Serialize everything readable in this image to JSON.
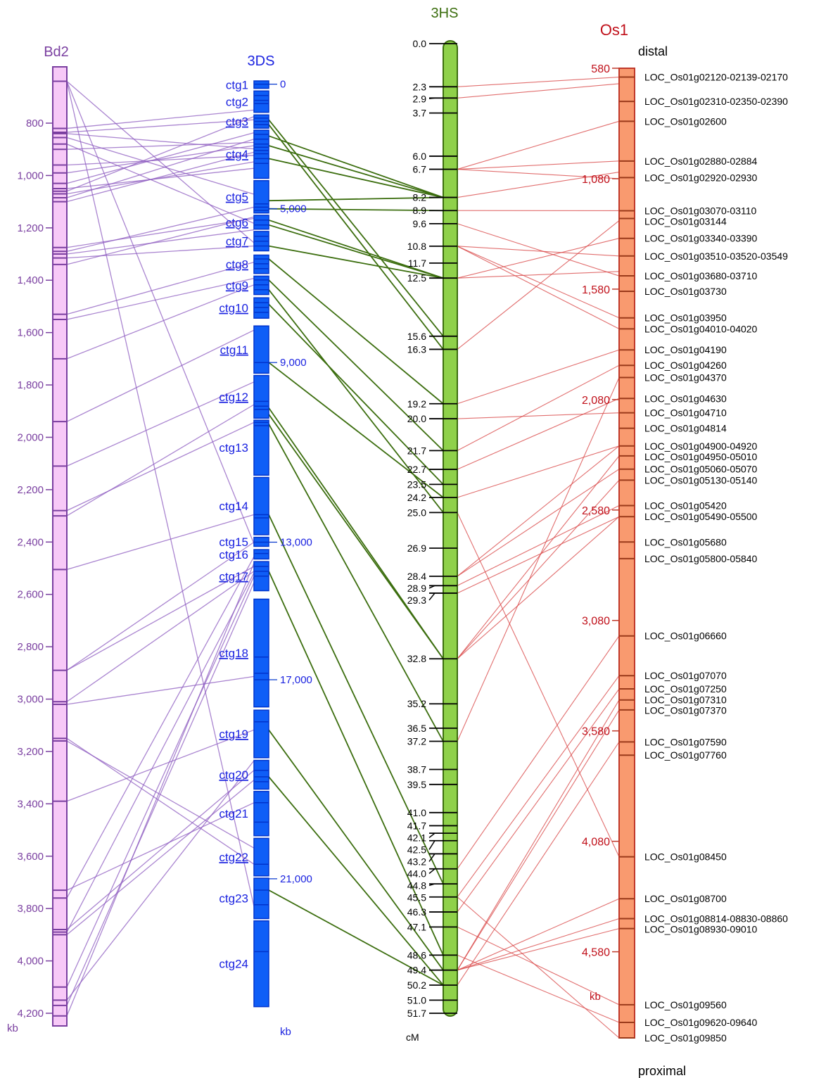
{
  "colors": {
    "bd2_fill": "#f7c9f7",
    "bd2_edge": "#7a3fa0",
    "bd2_text": "#7a3fa0",
    "bd2_link": "#8e5cc0",
    "ds_fill": "#0f5ef7",
    "ds_edge": "#0033cc",
    "ds_text": "#1a22e0",
    "ds_link": "#3c6e0f",
    "hs_fill": "#8fd14a",
    "hs_edge": "#3c6e0f",
    "hs_text": "#3c6e0f",
    "os_fill": "#f99a6f",
    "os_edge": "#c0392b",
    "os_text": "#c0101a",
    "os_link": "#d94a4a"
  },
  "bd2": {
    "title": "Bd2",
    "unit": "kb",
    "range": [
      635,
      4230
    ],
    "ticks": [
      "800",
      "1,000",
      "1,200",
      "1,400",
      "1,600",
      "1,800",
      "2,000",
      "2,200",
      "2,400",
      "2,600",
      "2,800",
      "3,000",
      "3,200",
      "3,400",
      "3,600",
      "3,800",
      "4,000",
      "4,200"
    ],
    "marks": [
      640,
      820,
      835,
      840,
      855,
      880,
      900,
      960,
      990,
      1030,
      1050,
      1060,
      1070,
      1085,
      1100,
      1275,
      1290,
      1300,
      1315,
      1340,
      1530,
      1550,
      1700,
      1940,
      2110,
      2280,
      2300,
      2505,
      2890,
      3010,
      3020,
      3150,
      3160,
      3390,
      3730,
      3760,
      3880,
      3890,
      3900,
      4100,
      4150,
      4170,
      4210
    ]
  },
  "ds3": {
    "title": "3DS",
    "unit": "kb",
    "contigs": [
      {
        "label": "ctg1",
        "underline": false,
        "from": 0,
        "to": 230,
        "marks": [
          100
        ]
      },
      {
        "label": "ctg2",
        "underline": false,
        "from": 310,
        "to": 970,
        "marks": [
          450,
          600,
          700
        ]
      },
      {
        "label": "ctg3",
        "underline": true,
        "from": 1050,
        "to": 1460,
        "marks": [
          1150,
          1250,
          1350
        ]
      },
      {
        "label": "ctg4",
        "underline": true,
        "from": 1520,
        "to": 3010,
        "marks": [
          1650,
          1800,
          1950,
          2050,
          2150,
          2250,
          2400,
          2550
        ]
      },
      {
        "label": "ctg5",
        "underline": true,
        "from": 3080,
        "to": 4080,
        "marks": [
          3800,
          3900,
          4000
        ]
      },
      {
        "label": "ctg6",
        "underline": true,
        "from": 4150,
        "to": 4580,
        "marks": [
          4300,
          4450
        ]
      },
      {
        "label": "ctg7",
        "underline": true,
        "from": 4650,
        "to": 5250,
        "marks": [
          4800,
          4950,
          5100
        ]
      },
      {
        "label": "ctg8",
        "underline": true,
        "from": 5380,
        "to": 5950,
        "marks": [
          5500,
          5650,
          5800
        ]
      },
      {
        "label": "ctg9",
        "underline": true,
        "from": 6030,
        "to": 6600,
        "marks": [
          6150,
          6300,
          6450
        ]
      },
      {
        "label": "ctg10",
        "underline": true,
        "from": 6700,
        "to": 7330,
        "marks": [
          6850,
          7000,
          7150
        ]
      },
      {
        "label": "ctg11",
        "underline": true,
        "from": 7570,
        "to": 9030,
        "marks": [
          8700
        ]
      },
      {
        "label": "ctg12",
        "underline": true,
        "from": 9100,
        "to": 10420,
        "marks": [
          9900,
          10050,
          10150
        ]
      },
      {
        "label": "ctg13",
        "underline": false,
        "from": 10480,
        "to": 12180,
        "marks": [
          10550,
          10650
        ]
      },
      {
        "label": "ctg14",
        "underline": false,
        "from": 12250,
        "to": 14020,
        "marks": [
          13400,
          13500
        ]
      },
      {
        "label": "ctg15",
        "underline": false,
        "from": 14100,
        "to": 14380,
        "marks": [
          14250
        ]
      },
      {
        "label": "ctg16",
        "underline": false,
        "from": 14480,
        "to": 14770,
        "marks": [
          14600
        ]
      },
      {
        "label": "ctg17",
        "underline": true,
        "from": 14850,
        "to": 15750,
        "marks": [
          15000,
          15150,
          15300
        ]
      },
      {
        "label": "ctg18",
        "underline": true,
        "from": 16010,
        "to": 19340,
        "marks": [
          17800,
          18300,
          18500
        ]
      },
      {
        "label": "ctg19",
        "underline": true,
        "from": 19440,
        "to": 20910,
        "marks": [
          19800
        ]
      },
      {
        "label": "ctg20",
        "underline": true,
        "from": 20990,
        "to": 21880,
        "marks": [
          21300,
          21500,
          21650
        ]
      },
      {
        "label": "ctg21",
        "underline": false,
        "from": 21950,
        "to": 23320,
        "marks": [
          22300,
          22900
        ]
      },
      {
        "label": "ctg22",
        "underline": true,
        "from": 23400,
        "to": 24560,
        "marks": [
          24200
        ]
      },
      {
        "label": "ctg23",
        "underline": false,
        "from": 24630,
        "to": 25880,
        "marks": [
          25000,
          25450
        ]
      },
      {
        "label": "ctg24",
        "underline": false,
        "from": 25950,
        "to": 28600,
        "marks": [
          26900
        ]
      }
    ],
    "kb_ticks": [
      {
        "label": "0",
        "value": 100
      },
      {
        "label": "5,000",
        "value": 3950
      },
      {
        "label": "9,000",
        "value": 8700
      },
      {
        "label": "13,000",
        "value": 14250
      },
      {
        "label": "17,000",
        "value": 18500
      },
      {
        "label": "21,000",
        "value": 24650
      }
    ]
  },
  "hs3": {
    "title": "3HS",
    "unit": "cM",
    "range": [
      0,
      51.7
    ],
    "loci": [
      {
        "label": "0.0",
        "cM": 0.0
      },
      {
        "label": "2.3",
        "cM": 2.3
      },
      {
        "label": "2.9",
        "cM": 2.9
      },
      {
        "label": "3.7",
        "cM": 3.7
      },
      {
        "label": "6.0",
        "cM": 6.0
      },
      {
        "label": "6.7",
        "cM": 6.7
      },
      {
        "label": "8.2",
        "cM": 8.2
      },
      {
        "label": "8.9",
        "cM": 8.9
      },
      {
        "label": "9.6",
        "cM": 9.6
      },
      {
        "label": "10.8",
        "cM": 10.8
      },
      {
        "label": "11.7",
        "cM": 11.7
      },
      {
        "label": "12.5",
        "cM": 12.5
      },
      {
        "label": "15.6",
        "cM": 15.6
      },
      {
        "label": "16.3",
        "cM": 16.3
      },
      {
        "label": "19.2",
        "cM": 19.2
      },
      {
        "label": "20.0",
        "cM": 20.0
      },
      {
        "label": "21.7",
        "cM": 21.7
      },
      {
        "label": "22.7",
        "cM": 22.7
      },
      {
        "label": "23.5",
        "cM": 23.5
      },
      {
        "label": "24.2",
        "cM": 24.2
      },
      {
        "label": "25.0",
        "cM": 25.0
      },
      {
        "label": "26.9",
        "cM": 26.9
      },
      {
        "label": "28.4",
        "cM": 28.4
      },
      {
        "label": "28.9",
        "cM": 28.9
      },
      {
        "label": "29.3",
        "cM": 29.3
      },
      {
        "label": "32.8",
        "cM": 32.8
      },
      {
        "label": "35.2",
        "cM": 35.2
      },
      {
        "label": "36.5",
        "cM": 36.5
      },
      {
        "label": "37.2",
        "cM": 37.2
      },
      {
        "label": "38.7",
        "cM": 38.7
      },
      {
        "label": "39.5",
        "cM": 39.5
      },
      {
        "label": "41.0",
        "cM": 41.0
      },
      {
        "label": "41.7",
        "cM": 41.7
      },
      {
        "label": "42.1",
        "cM": 42.1
      },
      {
        "label": "42.5",
        "cM": 42.5
      },
      {
        "label": "43.2",
        "cM": 43.2
      },
      {
        "label": "44.0",
        "cM": 44.0
      },
      {
        "label": "44.8",
        "cM": 44.8
      },
      {
        "label": "45.5",
        "cM": 45.5
      },
      {
        "label": "46.3",
        "cM": 46.3
      },
      {
        "label": "47.1",
        "cM": 47.1
      },
      {
        "label": "48.6",
        "cM": 48.6
      },
      {
        "label": "49.4",
        "cM": 49.4
      },
      {
        "label": "50.2",
        "cM": 50.2
      },
      {
        "label": "51.0",
        "cM": 51.0
      },
      {
        "label": "51.7",
        "cM": 51.7
      }
    ]
  },
  "os1": {
    "title": "Os1",
    "top_label": "distal",
    "bottom_label": "proximal",
    "unit": "kb",
    "range": [
      580,
      4970
    ],
    "ticks": [
      {
        "label": "580",
        "value": 580
      },
      {
        "label": "1,080",
        "value": 1080
      },
      {
        "label": "1,580",
        "value": 1580
      },
      {
        "label": "2,080",
        "value": 2080
      },
      {
        "label": "2,580",
        "value": 2580
      },
      {
        "label": "3,080",
        "value": 3080
      },
      {
        "label": "3,580",
        "value": 3580
      },
      {
        "label": "4,080",
        "value": 4080
      },
      {
        "label": "4,580",
        "value": 4580
      }
    ],
    "genes": [
      {
        "label": "LOC_Os01g02120-02139-02170",
        "kb": 620
      },
      {
        "label": "LOC_Os01g02310-02350-02390",
        "kb": 730
      },
      {
        "label": "LOC_Os01g02600",
        "kb": 820
      },
      {
        "label": "LOC_Os01g02880-02884",
        "kb": 1000
      },
      {
        "label": "LOC_Os01g02920-02930",
        "kb": 1075
      },
      {
        "label": "LOC_Os01g03070-03110",
        "kb": 1225
      },
      {
        "label": "LOC_Os01g03144",
        "kb": 1260
      },
      {
        "label": "LOC_Os01g03340-03390",
        "kb": 1350
      },
      {
        "label": "LOC_Os01g03510-03520-03549",
        "kb": 1430
      },
      {
        "label": "LOC_Os01g03680-03710",
        "kb": 1520
      },
      {
        "label": "LOC_Os01g03730",
        "kb": 1590
      },
      {
        "label": "LOC_Os01g03950",
        "kb": 1710
      },
      {
        "label": "LOC_Os01g04010-04020",
        "kb": 1760
      },
      {
        "label": "LOC_Os01g04190",
        "kb": 1855
      },
      {
        "label": "LOC_Os01g04260",
        "kb": 1925
      },
      {
        "label": "LOC_Os01g04370",
        "kb": 1980
      },
      {
        "label": "LOC_Os01g04630",
        "kb": 2075
      },
      {
        "label": "LOC_Os01g04710",
        "kb": 2140
      },
      {
        "label": "LOC_Os01g04814",
        "kb": 2210
      },
      {
        "label": "LOC_Os01g04900-04920",
        "kb": 2290
      },
      {
        "label": "LOC_Os01g04950-05010",
        "kb": 2335
      },
      {
        "label": "LOC_Os01g05060-05070",
        "kb": 2395
      },
      {
        "label": "LOC_Os01g05130-05140",
        "kb": 2445
      },
      {
        "label": "LOC_Os01g05420",
        "kb": 2560
      },
      {
        "label": "LOC_Os01g05490-05500",
        "kb": 2610
      },
      {
        "label": "LOC_Os01g05680",
        "kb": 2725
      },
      {
        "label": "LOC_Os01g05800-05840",
        "kb": 2800
      },
      {
        "label": "LOC_Os01g06660",
        "kb": 3150
      },
      {
        "label": "LOC_Os01g07070",
        "kb": 3330
      },
      {
        "label": "LOC_Os01g07250",
        "kb": 3390
      },
      {
        "label": "LOC_Os01g07310",
        "kb": 3440
      },
      {
        "label": "LOC_Os01g07370",
        "kb": 3485
      },
      {
        "label": "LOC_Os01g07590",
        "kb": 3630
      },
      {
        "label": "LOC_Os01g07760",
        "kb": 3690
      },
      {
        "label": "LOC_Os01g08450",
        "kb": 4150
      },
      {
        "label": "LOC_Os01g08700",
        "kb": 4340
      },
      {
        "label": "LOC_Os01g08814-08830-08860",
        "kb": 4430
      },
      {
        "label": "LOC_Os01g08930-09010",
        "kb": 4475
      },
      {
        "label": "LOC_Os01g09560",
        "kb": 4820
      },
      {
        "label": "LOC_Os01g09620-09640",
        "kb": 4900
      },
      {
        "label": "LOC_Os01g09850",
        "kb": 4970
      }
    ]
  },
  "links_bd2_ds": [
    [
      640,
      5000
    ],
    [
      640,
      14300
    ],
    [
      640,
      25500
    ],
    [
      820,
      900
    ],
    [
      835,
      1200
    ],
    [
      840,
      2100
    ],
    [
      855,
      3500
    ],
    [
      880,
      4400
    ],
    [
      900,
      1900
    ],
    [
      960,
      2300
    ],
    [
      990,
      2000
    ],
    [
      1030,
      1600
    ],
    [
      1050,
      2700
    ],
    [
      1060,
      1100
    ],
    [
      1070,
      2500
    ],
    [
      1085,
      1800
    ],
    [
      1100,
      2200
    ],
    [
      1275,
      4250
    ],
    [
      1290,
      3900
    ],
    [
      1300,
      4600
    ],
    [
      1315,
      5100
    ],
    [
      1340,
      4200
    ],
    [
      1530,
      5600
    ],
    [
      1550,
      6100
    ],
    [
      1700,
      6300
    ],
    [
      1940,
      7700
    ],
    [
      2110,
      9300
    ],
    [
      2280,
      10550
    ],
    [
      2300,
      10000
    ],
    [
      2505,
      13400
    ],
    [
      2890,
      14250
    ],
    [
      2890,
      15000
    ],
    [
      3010,
      15150
    ],
    [
      3020,
      18400
    ],
    [
      3150,
      24200
    ],
    [
      3160,
      23700
    ],
    [
      3390,
      20050
    ],
    [
      3730,
      22300
    ],
    [
      3760,
      14700
    ],
    [
      3880,
      21300
    ],
    [
      3890,
      15200
    ],
    [
      3900,
      21600
    ],
    [
      4100,
      15300
    ],
    [
      4150,
      21000
    ],
    [
      4170,
      15500
    ],
    [
      4210,
      14900
    ]
  ],
  "links_ds_hs": [
    [
      1200,
      15.6
    ],
    [
      1350,
      16.3
    ],
    [
      1700,
      8.2
    ],
    [
      2000,
      8.2
    ],
    [
      2400,
      8.2
    ],
    [
      3700,
      8.2
    ],
    [
      3950,
      8.9
    ],
    [
      4300,
      12.5
    ],
    [
      4450,
      12.5
    ],
    [
      5100,
      12.5
    ],
    [
      5500,
      19.2
    ],
    [
      6150,
      21.7
    ],
    [
      6450,
      25.0
    ],
    [
      6900,
      23.5
    ],
    [
      8700,
      24.2
    ],
    [
      10100,
      32.8
    ],
    [
      10300,
      32.8
    ],
    [
      10600,
      37.2
    ],
    [
      13400,
      44.8
    ],
    [
      15150,
      48.6
    ],
    [
      20050,
      49.4
    ],
    [
      21500,
      50.2
    ],
    [
      25000,
      50.2
    ]
  ],
  "links_hs_os": [
    [
      2.3,
      620
    ],
    [
      2.9,
      650
    ],
    [
      6.7,
      820
    ],
    [
      6.7,
      1000
    ],
    [
      6.7,
      1080
    ],
    [
      8.2,
      1050
    ],
    [
      8.9,
      1225
    ],
    [
      9.6,
      1520
    ],
    [
      10.8,
      1710
    ],
    [
      10.8,
      1760
    ],
    [
      10.8,
      1430
    ],
    [
      12.5,
      1350
    ],
    [
      12.5,
      1500
    ],
    [
      16.3,
      1270
    ],
    [
      20.0,
      2140
    ],
    [
      19.2,
      1855
    ],
    [
      21.7,
      1925
    ],
    [
      22.7,
      2075
    ],
    [
      24.2,
      2290
    ],
    [
      28.4,
      2290
    ],
    [
      28.4,
      2395
    ],
    [
      28.9,
      2560
    ],
    [
      29.3,
      2610
    ],
    [
      32.8,
      2335
    ],
    [
      32.8,
      2445
    ],
    [
      32.8,
      2610
    ],
    [
      37.2,
      1980
    ],
    [
      25.0,
      4150
    ],
    [
      44.0,
      3150
    ],
    [
      45.5,
      3330
    ],
    [
      46.3,
      3390
    ],
    [
      49.4,
      3440
    ],
    [
      49.4,
      3485
    ],
    [
      49.4,
      4430
    ],
    [
      49.4,
      4475
    ],
    [
      50.2,
      3630
    ],
    [
      47.1,
      4820
    ],
    [
      48.6,
      4900
    ],
    [
      45.5,
      4970
    ],
    [
      49.4,
      4340
    ]
  ]
}
